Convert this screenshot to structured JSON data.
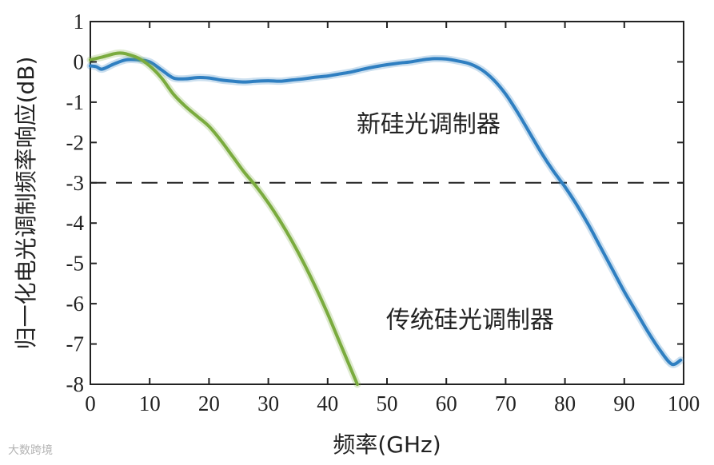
{
  "chart_data": {
    "type": "line",
    "title": "",
    "xlabel": "频率(GHz)",
    "ylabel": "归一化电光调制频率响应(dB)",
    "xlim": [
      0,
      100
    ],
    "ylim": [
      -8,
      1
    ],
    "xticks": [
      0,
      10,
      20,
      30,
      40,
      50,
      60,
      70,
      80,
      90,
      100
    ],
    "yticks": [
      1,
      0,
      -1,
      -2,
      -3,
      -4,
      -5,
      -6,
      -7,
      -8
    ],
    "grid": false,
    "reference_line": {
      "y": -3,
      "style": "dashed",
      "color": "#222222"
    },
    "series": [
      {
        "name": "新硅光调制器",
        "color": "#2f7fc1",
        "x": [
          0,
          1,
          2,
          4,
          6,
          8,
          10,
          12,
          14,
          16,
          18,
          20,
          22,
          24,
          26,
          28,
          30,
          32,
          34,
          36,
          38,
          40,
          42,
          44,
          46,
          48,
          50,
          52,
          54,
          56,
          58,
          60,
          62,
          64,
          66,
          68,
          70,
          72,
          74,
          76,
          78,
          80,
          82,
          84,
          86,
          88,
          90,
          92,
          94,
          96,
          98,
          99.5
        ],
        "y": [
          -0.1,
          -0.12,
          -0.18,
          -0.05,
          0.05,
          0.05,
          0.0,
          -0.2,
          -0.4,
          -0.42,
          -0.39,
          -0.4,
          -0.45,
          -0.48,
          -0.5,
          -0.48,
          -0.47,
          -0.48,
          -0.45,
          -0.42,
          -0.38,
          -0.35,
          -0.3,
          -0.25,
          -0.18,
          -0.12,
          -0.07,
          -0.03,
          0.0,
          0.05,
          0.08,
          0.07,
          0.02,
          -0.05,
          -0.2,
          -0.45,
          -0.8,
          -1.25,
          -1.75,
          -2.25,
          -2.7,
          -3.1,
          -3.55,
          -4.05,
          -4.6,
          -5.15,
          -5.7,
          -6.2,
          -6.7,
          -7.15,
          -7.5,
          -7.4
        ]
      },
      {
        "name": "传统硅光调制器",
        "color": "#7aab3e",
        "x": [
          0,
          2,
          4,
          5,
          6,
          8,
          10,
          12,
          14,
          16,
          18,
          20,
          22,
          24,
          26,
          28,
          30,
          32,
          34,
          36,
          38,
          40,
          42,
          44,
          45
        ],
        "y": [
          0.05,
          0.12,
          0.2,
          0.22,
          0.2,
          0.1,
          -0.1,
          -0.4,
          -0.8,
          -1.1,
          -1.35,
          -1.6,
          -1.95,
          -2.35,
          -2.75,
          -3.1,
          -3.5,
          -3.95,
          -4.45,
          -5.0,
          -5.6,
          -6.25,
          -6.95,
          -7.65,
          -8.0
        ]
      }
    ],
    "annotations": [
      {
        "text": "新硅光调制器",
        "x": 57,
        "y": -1.55
      },
      {
        "text": "传统硅光调制器",
        "x": 64,
        "y": -6.4
      }
    ]
  },
  "watermark": "大数跨境"
}
